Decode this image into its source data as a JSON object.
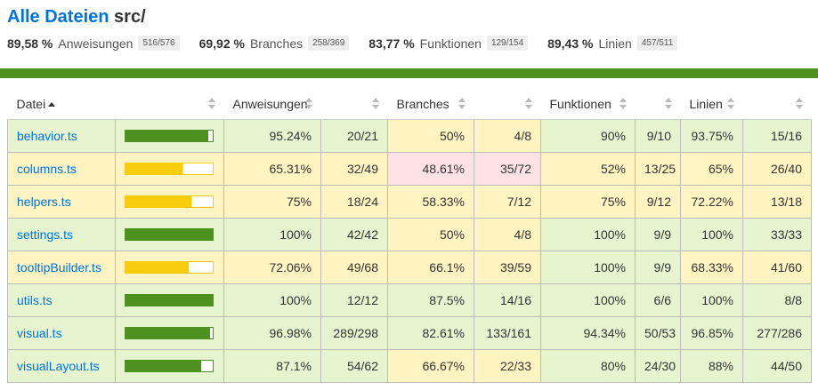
{
  "header": {
    "link": "Alle Dateien",
    "dir": "src/"
  },
  "summary": [
    {
      "pct": "89,58 %",
      "label": "Anweisungen",
      "frac": "516/576"
    },
    {
      "pct": "69,92 %",
      "label": "Branches",
      "frac": "258/369"
    },
    {
      "pct": "83,77 %",
      "label": "Funktionen",
      "frac": "129/154"
    },
    {
      "pct": "89,43 %",
      "label": "Linien",
      "frac": "457/511"
    }
  ],
  "columns": {
    "file": "Datei",
    "statements": "Anweisungen",
    "branches": "Branches",
    "functions": "Funktionen",
    "lines": "Linien"
  },
  "colors": {
    "high": "#e6f5d0",
    "medium": "#fff4c2",
    "low": "#fce1e5",
    "bar_high": "#4d9221",
    "bar_medium": "#f9cd0b"
  },
  "rows": [
    {
      "file": "behavior.ts",
      "level": "high",
      "bar": 95.24,
      "st": "95.24%",
      "stf": "20/21",
      "stl": "high",
      "br": "50%",
      "brf": "4/8",
      "brl": "medium",
      "fn": "90%",
      "fnf": "9/10",
      "fnl": "high",
      "ln": "93.75%",
      "lnf": "15/16",
      "lnl": "high"
    },
    {
      "file": "columns.ts",
      "level": "medium",
      "bar": 65.31,
      "st": "65.31%",
      "stf": "32/49",
      "stl": "medium",
      "br": "48.61%",
      "brf": "35/72",
      "brl": "low",
      "fn": "52%",
      "fnf": "13/25",
      "fnl": "medium",
      "ln": "65%",
      "lnf": "26/40",
      "lnl": "medium"
    },
    {
      "file": "helpers.ts",
      "level": "medium",
      "bar": 75,
      "st": "75%",
      "stf": "18/24",
      "stl": "medium",
      "br": "58.33%",
      "brf": "7/12",
      "brl": "medium",
      "fn": "75%",
      "fnf": "9/12",
      "fnl": "medium",
      "ln": "72.22%",
      "lnf": "13/18",
      "lnl": "medium"
    },
    {
      "file": "settings.ts",
      "level": "high",
      "bar": 100,
      "st": "100%",
      "stf": "42/42",
      "stl": "high",
      "br": "50%",
      "brf": "4/8",
      "brl": "medium",
      "fn": "100%",
      "fnf": "9/9",
      "fnl": "high",
      "ln": "100%",
      "lnf": "33/33",
      "lnl": "high"
    },
    {
      "file": "tooltipBuilder.ts",
      "level": "medium",
      "bar": 72.06,
      "st": "72.06%",
      "stf": "49/68",
      "stl": "medium",
      "br": "66.1%",
      "brf": "39/59",
      "brl": "medium",
      "fn": "100%",
      "fnf": "9/9",
      "fnl": "high",
      "ln": "68.33%",
      "lnf": "41/60",
      "lnl": "medium"
    },
    {
      "file": "utils.ts",
      "level": "high",
      "bar": 100,
      "st": "100%",
      "stf": "12/12",
      "stl": "high",
      "br": "87.5%",
      "brf": "14/16",
      "brl": "high",
      "fn": "100%",
      "fnf": "6/6",
      "fnl": "high",
      "ln": "100%",
      "lnf": "8/8",
      "lnl": "high"
    },
    {
      "file": "visual.ts",
      "level": "high",
      "bar": 96.98,
      "st": "96.98%",
      "stf": "289/298",
      "stl": "high",
      "br": "82.61%",
      "brf": "133/161",
      "brl": "high",
      "fn": "94.34%",
      "fnf": "50/53",
      "fnl": "high",
      "ln": "96.85%",
      "lnf": "277/286",
      "lnl": "high"
    },
    {
      "file": "visualLayout.ts",
      "level": "high",
      "bar": 87.1,
      "st": "87.1%",
      "stf": "54/62",
      "stl": "high",
      "br": "66.67%",
      "brf": "22/33",
      "brl": "medium",
      "fn": "80%",
      "fnf": "24/30",
      "fnl": "high",
      "ln": "88%",
      "lnf": "44/50",
      "lnl": "high"
    }
  ]
}
